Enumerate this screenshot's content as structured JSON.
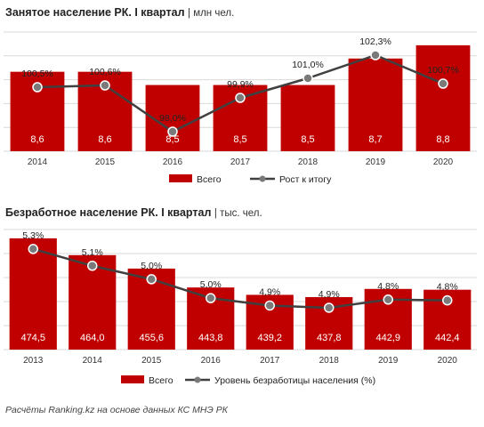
{
  "chart_data": [
    {
      "type": "bar",
      "title": "Занятое население РК. I квартал",
      "unit": "млн чел.",
      "categories": [
        "2014",
        "2015",
        "2016",
        "2017",
        "2018",
        "2019",
        "2020"
      ],
      "series": [
        {
          "name": "Всего",
          "type": "bar",
          "color": "#c00000",
          "values": [
            8.6,
            8.6,
            8.5,
            8.5,
            8.5,
            8.7,
            8.8
          ],
          "labels": [
            "8,6",
            "8,6",
            "8,5",
            "8,5",
            "8,5",
            "8,7",
            "8,8"
          ]
        },
        {
          "name": "Рост к итогу",
          "type": "line",
          "color": "#404040",
          "unit": "%",
          "values": [
            100.5,
            100.6,
            98.0,
            99.9,
            101.0,
            102.3,
            100.7
          ],
          "labels": [
            "100,5%",
            "100,6%",
            "98,0%",
            "99,9%",
            "101,0%",
            "102,3%",
            "100,7%"
          ]
        }
      ],
      "bar_ylim": [
        8.0,
        8.9
      ],
      "line_ylim": [
        96.9,
        103.6
      ],
      "grid": true,
      "legend": "bottom"
    },
    {
      "type": "bar",
      "title": "Безработное население РК. I квартал",
      "unit": "тыс. чел.",
      "categories": [
        "2013",
        "2014",
        "2015",
        "2016",
        "2017",
        "2018",
        "2019",
        "2020"
      ],
      "series": [
        {
          "name": "Всего",
          "type": "bar",
          "color": "#c00000",
          "values": [
            474.5,
            464.0,
            455.6,
            443.8,
            439.2,
            437.8,
            442.9,
            442.4
          ],
          "labels": [
            "474,5",
            "464,0",
            "455,6",
            "443,8",
            "439,2",
            "437,8",
            "442,9",
            "442,4"
          ]
        },
        {
          "name": "Уровень безработицы населения (%)",
          "type": "line",
          "color": "#404040",
          "unit": "%",
          "values": [
            5.3,
            5.1,
            5.0,
            5.0,
            4.9,
            4.9,
            4.8,
            4.8
          ],
          "labels": [
            "5,3%",
            "5,1%",
            "5,0%",
            "5,0%",
            "4,9%",
            "4,9%",
            "4,8%",
            "4,8%"
          ]
        }
      ],
      "bar_ylim": [
        405,
        480
      ],
      "grid": true,
      "legend": "bottom"
    }
  ],
  "footer": {
    "source": "Расчёты Ranking.kz на основе данных  КС МНЭ РК"
  }
}
